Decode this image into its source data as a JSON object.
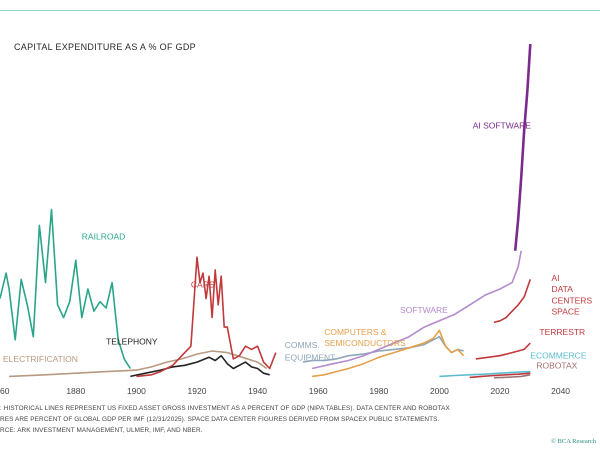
{
  "title": "CAPITAL EXPENDITURE AS A % OF GDP",
  "footnotes": [
    ": HISTORICAL LINES REPRESENT US FIXED ASSET GROSS INVESTMENT AS A PERCENT OF GDP (NIPA TABLES). DATA CENTER AND ROBOTAX",
    "RES ARE PERCENT OF GLOBAL GDP PER IMF (12/31/2025). SPACE DATA CENTER FIGURES DERIVED FROM SPACEX PUBLIC STATEMENTS.",
    "RCE: ARK INVESTMENT MANAGEMENT, ULMER, IMF, AND NBER."
  ],
  "credit": "© BCA Research",
  "chart_data": {
    "type": "line",
    "title": "CAPITAL EXPENDITURE AS A % OF GDP",
    "xlabel": "",
    "ylabel": "",
    "xlim": [
      1855,
      2053
    ],
    "ylim": [
      0,
      10
    ],
    "grid": false,
    "x_ticks": [
      "60",
      "1880",
      "1900",
      "1920",
      "1940",
      "1960",
      "1980",
      "2000",
      "2020",
      "2040"
    ],
    "series": [
      {
        "name": "RAILROAD",
        "color": "#2aa58a",
        "x": [
          1855,
          1857,
          1858,
          1860,
          1862,
          1864,
          1866,
          1868,
          1870,
          1872,
          1874,
          1876,
          1878,
          1880,
          1882,
          1884,
          1886,
          1888,
          1890,
          1892,
          1894,
          1896,
          1898
        ],
        "y": [
          2.5,
          3.3,
          2.8,
          1.2,
          3.1,
          2.3,
          1.3,
          4.8,
          3.0,
          5.3,
          2.3,
          1.9,
          2.4,
          3.7,
          1.9,
          2.8,
          2.1,
          2.4,
          2.2,
          3.0,
          1.2,
          0.6,
          0.3
        ]
      },
      {
        "name": "ELECTRIFICATION",
        "color": "#b89a80",
        "x": [
          1858,
          1870,
          1880,
          1890,
          1900,
          1905,
          1910,
          1915,
          1920,
          1925,
          1930,
          1935,
          1940,
          1943
        ],
        "y": [
          0.05,
          0.1,
          0.15,
          0.2,
          0.25,
          0.35,
          0.5,
          0.6,
          0.75,
          0.85,
          0.8,
          0.65,
          0.5,
          0.3
        ]
      },
      {
        "name": "TELEPHONY",
        "color": "#222222",
        "x": [
          1898,
          1903,
          1908,
          1912,
          1916,
          1920,
          1924,
          1926,
          1928,
          1930,
          1932,
          1934,
          1936,
          1938,
          1940,
          1942,
          1944
        ],
        "y": [
          0.05,
          0.15,
          0.25,
          0.35,
          0.4,
          0.5,
          0.65,
          0.55,
          0.7,
          0.45,
          0.3,
          0.4,
          0.5,
          0.35,
          0.3,
          0.15,
          0.1
        ]
      },
      {
        "name": "CARS",
        "color": "#c0393b",
        "x": [
          1900,
          1905,
          1908,
          1912,
          1915,
          1918,
          1920,
          1921,
          1922,
          1923,
          1924,
          1925,
          1926,
          1927,
          1928,
          1929,
          1930,
          1932,
          1934,
          1936,
          1938,
          1940,
          1942,
          1944,
          1946
        ],
        "y": [
          0.05,
          0.1,
          0.2,
          0.4,
          0.7,
          1.0,
          3.8,
          3.0,
          3.3,
          2.5,
          3.2,
          1.9,
          3.4,
          2.3,
          3.2,
          1.6,
          1.6,
          0.6,
          0.7,
          1.0,
          0.9,
          1.0,
          0.5,
          0.3,
          0.8
        ]
      },
      {
        "name": "COMMS. EQUIPMENT",
        "color": "#8ea6b8",
        "x": [
          1955,
          1958,
          1962,
          1966,
          1970,
          1975,
          1980,
          1985,
          1990,
          1995,
          2000,
          2002,
          2004,
          2006,
          2008
        ],
        "y": [
          0.5,
          0.55,
          0.55,
          0.6,
          0.7,
          0.75,
          0.85,
          0.9,
          0.95,
          1.05,
          1.3,
          1.0,
          0.8,
          0.9,
          0.85
        ]
      },
      {
        "name": "COMPUTERS & SEMICONDUCTORS",
        "color": "#e4a04a",
        "x": [
          1958,
          1962,
          1966,
          1970,
          1975,
          1980,
          1985,
          1990,
          1995,
          1998,
          2000,
          2002,
          2004,
          2006,
          2008
        ],
        "y": [
          0.05,
          0.1,
          0.2,
          0.3,
          0.45,
          0.65,
          0.8,
          0.95,
          1.1,
          1.25,
          1.5,
          1.0,
          0.8,
          0.9,
          0.7
        ]
      },
      {
        "name": "SOFTWARE",
        "color": "#b48bcf",
        "x": [
          1958,
          1965,
          1970,
          1975,
          1980,
          1985,
          1990,
          1995,
          2000,
          2005,
          2010,
          2015,
          2020,
          2024,
          2026,
          2027
        ],
        "y": [
          0.3,
          0.45,
          0.55,
          0.7,
          0.9,
          1.1,
          1.3,
          1.6,
          1.8,
          2.0,
          2.3,
          2.6,
          2.8,
          3.0,
          3.5,
          4.0
        ]
      },
      {
        "name": "AI SOFTWARE",
        "color": "#7a2a8a",
        "x": [
          2025,
          2026,
          2027,
          2028,
          2029,
          2030
        ],
        "y": [
          4.0,
          5.0,
          6.3,
          7.8,
          9.0,
          10.5
        ]
      },
      {
        "name": "AI DATA CENTERS",
        "color": "#c0393b",
        "x": [
          2018,
          2020,
          2022,
          2024,
          2026,
          2028,
          2030
        ],
        "y": [
          1.75,
          1.8,
          1.9,
          2.1,
          2.3,
          2.55,
          3.1
        ]
      },
      {
        "name": "SPACE",
        "color": "#c0393b",
        "x": [
          2010,
          2014,
          2018,
          2022,
          2026,
          2030
        ],
        "y": [
          0.02,
          0.05,
          0.08,
          0.1,
          0.12,
          0.15
        ]
      },
      {
        "name": "TERRESTRIAL",
        "color": "#c0393b",
        "x": [
          2012,
          2016,
          2020,
          2024,
          2028,
          2030
        ],
        "y": [
          0.6,
          0.65,
          0.7,
          0.8,
          0.9,
          1.1
        ]
      },
      {
        "name": "ECOMMERCE",
        "color": "#5bbcd0",
        "x": [
          2000,
          2005,
          2010,
          2015,
          2020,
          2025,
          2030
        ],
        "y": [
          0.05,
          0.08,
          0.1,
          0.12,
          0.15,
          0.18,
          0.2
        ]
      },
      {
        "name": "ROBOTAXI",
        "color": "#a07070",
        "x": [
          2018,
          2021,
          2024,
          2027,
          2030
        ],
        "y": [
          0.01,
          0.02,
          0.03,
          0.05,
          0.1
        ]
      }
    ],
    "labels": [
      {
        "text": "RAILROAD",
        "series": "RAILROAD",
        "x": 1882,
        "y": 4.35
      },
      {
        "text": "ELECTRIFICATION",
        "series": "ELECTRIFICATION",
        "x": 1856,
        "y": 0.5
      },
      {
        "text": "TELEPHONY",
        "series": "TELEPHONY",
        "x": 1890,
        "y": 1.05
      },
      {
        "text": "CARS",
        "series": "CARS",
        "x": 1918,
        "y": 2.85
      },
      {
        "text": "COMMS.",
        "series": "COMMS. EQUIPMENT",
        "x": 1949,
        "y": 0.95
      },
      {
        "text": "EQUIPMENT",
        "series": "COMMS. EQUIPMENT",
        "x": 1949,
        "y": 0.55
      },
      {
        "text": "COMPUTERS &",
        "series": "COMPUTERS & SEMICONDUCTORS",
        "x": 1962,
        "y": 1.35
      },
      {
        "text": "SEMICONDUCTORS",
        "series": "COMPUTERS & SEMICONDUCTORS",
        "x": 1962,
        "y": 1.0
      },
      {
        "text": "SOFTWARE",
        "series": "SOFTWARE",
        "x": 1987,
        "y": 2.05
      },
      {
        "text": "AI SOFTWARE",
        "series": "AI SOFTWARE",
        "x": 2011,
        "y": 7.85
      },
      {
        "text": "AI",
        "series": "AI DATA CENTERS",
        "x": 2037,
        "y": 3.05
      },
      {
        "text": "DATA",
        "series": "AI DATA CENTERS",
        "x": 2037,
        "y": 2.7
      },
      {
        "text": "CENTERS",
        "series": "AI DATA CENTERS",
        "x": 2037,
        "y": 2.35
      },
      {
        "text": "SPACE",
        "series": "AI DATA CENTERS",
        "x": 2037,
        "y": 2.0
      },
      {
        "text": "TERRESTR",
        "series": "TERRESTRIAL",
        "x": 2033,
        "y": 1.35
      },
      {
        "text": "ECOMMERCE",
        "series": "ECOMMERCE",
        "x": 2030,
        "y": 0.62
      },
      {
        "text": "ROBOTAX",
        "series": "ROBOTAXI",
        "x": 2032,
        "y": 0.3
      }
    ]
  }
}
